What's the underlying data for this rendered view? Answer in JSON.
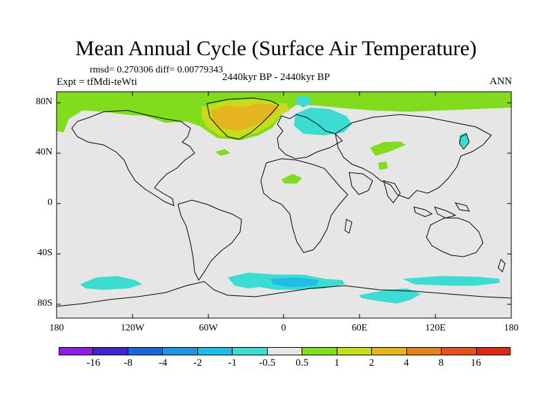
{
  "title": "Mean Annual Cycle (Surface Air Temperature)",
  "stats": "rmsd= 0.270306 diff= 0.00779343",
  "experiment": "Expt = tfMdi-teWti",
  "period": "2440kyr BP - 2440kyr BP",
  "season": "ANN",
  "lat_ticks": [
    "80N",
    "40N",
    "0",
    "40S",
    "80S"
  ],
  "lon_ticks": [
    "180",
    "120W",
    "60W",
    "0",
    "60E",
    "120E",
    "180"
  ],
  "colorbar": {
    "colors": [
      "#8c1ee6",
      "#3c28d2",
      "#1e64dc",
      "#1e96e6",
      "#1ebee6",
      "#3cdcd2",
      "#e6e6e6",
      "#82dc1e",
      "#c8dc1e",
      "#e6b41e",
      "#e6821e",
      "#e6501e",
      "#dc2814"
    ],
    "labels": [
      "-16",
      "-8",
      "-4",
      "-2",
      "-1",
      "-0.5",
      "0.5",
      "1",
      "2",
      "4",
      "8",
      "16"
    ]
  }
}
